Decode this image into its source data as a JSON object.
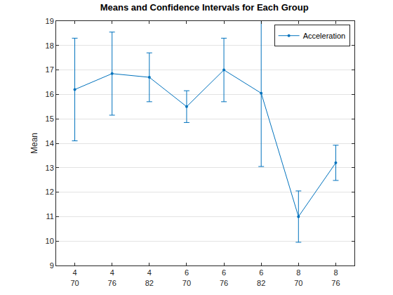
{
  "chart_data": {
    "type": "line",
    "title": "Means and Confidence Intervals for Each Group",
    "y_label": "Mean",
    "categories": [
      "4\n70",
      "4\n76",
      "4\n82",
      "6\n70",
      "6\n76",
      "6\n82",
      "8\n70",
      "8\n76"
    ],
    "series": [
      {
        "name": "Acceleration",
        "color": "#0072bd",
        "marker": "dot",
        "line_style": "solid",
        "values": [
          16.2,
          16.85,
          16.7,
          15.5,
          17.0,
          16.05,
          11.0,
          13.2
        ],
        "error": [
          2.1,
          1.7,
          1.0,
          0.65,
          1.3,
          3.0,
          1.05,
          0.72
        ]
      }
    ],
    "ylim": [
      9,
      19
    ],
    "yticks": [
      9,
      10,
      11,
      12,
      13,
      14,
      15,
      16,
      17,
      18,
      19
    ],
    "grid": true,
    "legend": "top-right"
  }
}
